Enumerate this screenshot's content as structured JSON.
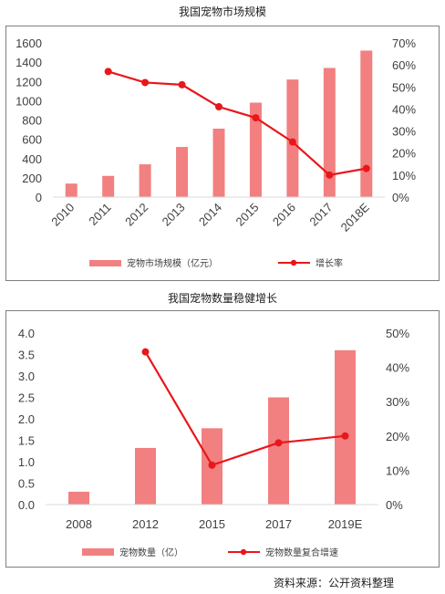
{
  "charts": {
    "market": {
      "title": "我国宠物市场规模",
      "legend_bar": "宠物市场规模（亿元）",
      "legend_line": "增长率",
      "bar_color": "#f28080",
      "line_color": "#e8171b"
    },
    "count": {
      "title": "我国宠物数量稳健增长",
      "legend_bar": "宠物数量（亿）",
      "legend_line": "宠物数量复合增速",
      "bar_color": "#f28080",
      "line_color": "#e8171b"
    }
  },
  "source_text": "资料来源：公开资料整理",
  "chart_data": [
    {
      "type": "bar",
      "title": "我国宠物市场规模",
      "categories": [
        "2010",
        "2011",
        "2012",
        "2013",
        "2014",
        "2015",
        "2016",
        "2017",
        "2018E"
      ],
      "series": [
        {
          "name": "宠物市场规模（亿元）",
          "type": "bar",
          "axis": "left",
          "values": [
            140,
            220,
            340,
            520,
            710,
            980,
            1220,
            1340,
            1520
          ]
        },
        {
          "name": "增长率",
          "type": "line",
          "axis": "right",
          "values": [
            null,
            0.57,
            0.52,
            0.51,
            0.41,
            0.36,
            0.25,
            0.1,
            0.13
          ]
        }
      ],
      "ylim_left": [
        0,
        1600
      ],
      "yticks_left": [
        "0",
        "200",
        "400",
        "600",
        "800",
        "1000",
        "1200",
        "1400",
        "1600"
      ],
      "ylim_right": [
        0,
        0.7
      ],
      "yticks_right": [
        "0%",
        "10%",
        "20%",
        "30%",
        "40%",
        "50%",
        "60%",
        "70%"
      ],
      "legend": "bottom"
    },
    {
      "type": "bar",
      "title": "我国宠物数量稳健增长",
      "categories": [
        "2008",
        "2012",
        "2015",
        "2017",
        "2019E"
      ],
      "series": [
        {
          "name": "宠物数量（亿）",
          "type": "bar",
          "axis": "left",
          "values": [
            0.3,
            1.32,
            1.78,
            2.5,
            3.6
          ]
        },
        {
          "name": "宠物数量复合增速",
          "type": "line",
          "axis": "right",
          "values": [
            null,
            0.445,
            0.115,
            0.18,
            0.2
          ]
        }
      ],
      "ylim_left": [
        0,
        4.0
      ],
      "yticks_left": [
        "0.0",
        "0.5",
        "1.0",
        "1.5",
        "2.0",
        "2.5",
        "3.0",
        "3.5",
        "4.0"
      ],
      "ylim_right": [
        0,
        0.5
      ],
      "yticks_right": [
        "0%",
        "10%",
        "20%",
        "30%",
        "40%",
        "50%"
      ],
      "legend": "bottom"
    }
  ]
}
